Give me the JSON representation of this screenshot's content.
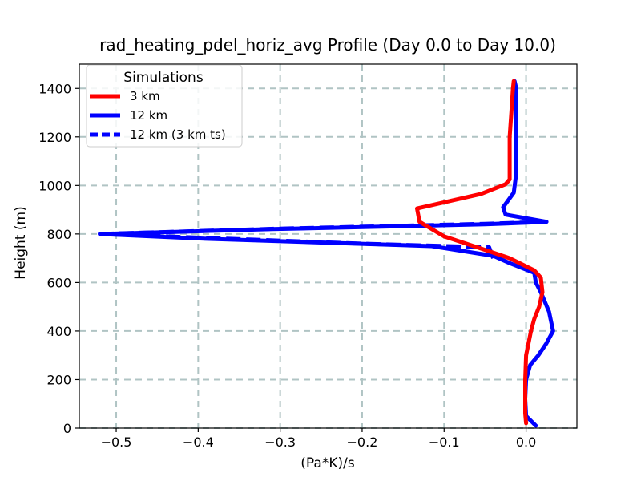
{
  "chart_data": {
    "type": "line",
    "title": "rad_heating_pdel_horiz_avg Profile (Day 0.0 to Day 10.0)",
    "xlabel": "(Pa*K)/s",
    "ylabel": "Height (m)",
    "xlim": [
      -0.545,
      0.062
    ],
    "ylim": [
      0,
      1500
    ],
    "grid": true,
    "x_ticks": [
      -0.5,
      -0.4,
      -0.3,
      -0.2,
      -0.1,
      0.0
    ],
    "x_tick_labels": [
      "−0.5",
      "−0.4",
      "−0.3",
      "−0.2",
      "−0.1",
      "0.0"
    ],
    "y_ticks": [
      0,
      200,
      400,
      600,
      800,
      1000,
      1200,
      1400
    ],
    "y_tick_labels": [
      "0",
      "200",
      "400",
      "600",
      "800",
      "1000",
      "1200",
      "1400"
    ],
    "legend": {
      "title": "Simulations",
      "position": "upper-left"
    },
    "series": [
      {
        "name": "3 km",
        "color": "#ff0000",
        "style": "solid",
        "points": [
          [
            0.0,
            20
          ],
          [
            -0.001,
            60
          ],
          [
            -0.001,
            120
          ],
          [
            -0.001,
            200
          ],
          [
            0.0,
            300
          ],
          [
            0.006,
            400
          ],
          [
            0.01,
            450
          ],
          [
            0.016,
            500
          ],
          [
            0.02,
            560
          ],
          [
            0.018,
            620
          ],
          [
            0.01,
            650
          ],
          [
            -0.02,
            700
          ],
          [
            -0.055,
            740
          ],
          [
            -0.1,
            790
          ],
          [
            -0.13,
            850
          ],
          [
            -0.133,
            905
          ],
          [
            -0.055,
            965
          ],
          [
            -0.025,
            1005
          ],
          [
            -0.02,
            1025
          ],
          [
            -0.02,
            1100
          ],
          [
            -0.02,
            1200
          ],
          [
            -0.018,
            1300
          ],
          [
            -0.016,
            1400
          ],
          [
            -0.015,
            1430
          ]
        ]
      },
      {
        "name": "12 km",
        "color": "#0000ff",
        "style": "solid",
        "points": [
          [
            0.012,
            10
          ],
          [
            0.0,
            50
          ],
          [
            -0.001,
            120
          ],
          [
            0.0,
            200
          ],
          [
            0.005,
            260
          ],
          [
            0.015,
            300
          ],
          [
            0.025,
            350
          ],
          [
            0.033,
            400
          ],
          [
            0.028,
            480
          ],
          [
            0.018,
            560
          ],
          [
            0.012,
            600
          ],
          [
            0.01,
            640
          ],
          [
            -0.02,
            680
          ],
          [
            -0.04,
            710
          ],
          [
            -0.115,
            750
          ],
          [
            -0.39,
            780
          ],
          [
            -0.52,
            800
          ],
          [
            -0.31,
            820
          ],
          [
            -0.05,
            840
          ],
          [
            0.025,
            850
          ],
          [
            -0.025,
            880
          ],
          [
            -0.028,
            910
          ],
          [
            -0.015,
            970
          ],
          [
            -0.012,
            1050
          ],
          [
            -0.012,
            1200
          ],
          [
            -0.012,
            1300
          ],
          [
            -0.012,
            1400
          ],
          [
            -0.014,
            1430
          ]
        ]
      },
      {
        "name": "12 km (3 km ts)",
        "color": "#0000ff",
        "style": "dashed",
        "points": [
          [
            -0.04,
            700
          ],
          [
            -0.045,
            745
          ],
          [
            -0.2,
            760
          ],
          [
            -0.4,
            785
          ],
          [
            -0.52,
            800
          ],
          [
            -0.3,
            822
          ],
          [
            -0.05,
            842
          ],
          [
            0.025,
            850
          ]
        ]
      }
    ]
  }
}
